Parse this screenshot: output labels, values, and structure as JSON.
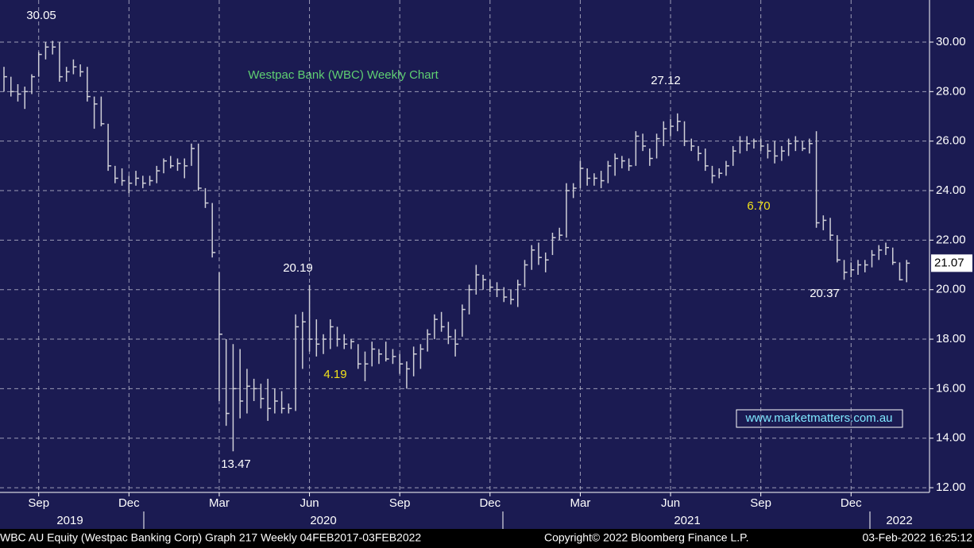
{
  "chart_data": {
    "type": "hlc",
    "title": "Westpac Bank (WBC) Weekly Chart",
    "watermark": "www.marketmatters.com.au",
    "footer": [
      "WBC AU Equity (Westpac Banking Corp) Graph 217  Weekly 04FEB2017-03FEB2022",
      "Copyright© 2022 Bloomberg Finance L.P.",
      "03-Feb-2022 16:25:12"
    ],
    "annotations": [
      "6.70",
      "4.19"
    ],
    "years": [
      "2019",
      "2020",
      "2021",
      "2022"
    ],
    "categories": [
      null,
      null,
      null,
      null,
      null,
      "Sep",
      null,
      null,
      null,
      null,
      null,
      null,
      null,
      null,
      null,
      null,
      null,
      null,
      "Dec",
      null,
      null,
      null,
      null,
      null,
      null,
      null,
      null,
      null,
      null,
      null,
      null,
      "Mar",
      null,
      null,
      null,
      null,
      null,
      null,
      null,
      null,
      null,
      null,
      null,
      null,
      "Jun",
      null,
      null,
      null,
      null,
      null,
      null,
      null,
      null,
      null,
      null,
      null,
      null,
      "Sep",
      null,
      null,
      null,
      null,
      null,
      null,
      null,
      null,
      null,
      null,
      null,
      null,
      "Dec",
      null,
      null,
      null,
      null,
      null,
      null,
      null,
      null,
      null,
      null,
      null,
      null,
      "Mar",
      null,
      null,
      null,
      null,
      null,
      null,
      null,
      null,
      null,
      null,
      null,
      null,
      "Jun",
      null,
      null,
      null,
      null,
      null,
      null,
      null,
      null,
      null,
      null,
      null,
      null,
      "Sep",
      null,
      null,
      null,
      null,
      null,
      null,
      null,
      null,
      null,
      null,
      null,
      null,
      "Dec",
      null,
      null,
      null,
      null,
      null,
      null,
      null,
      null
    ],
    "high": [
      29.0,
      28.6,
      28.3,
      28.2,
      28.7,
      29.6,
      30.0,
      30.05,
      30.0,
      29.0,
      29.3,
      29.1,
      29.0,
      27.8,
      27.8,
      26.7,
      25.0,
      24.9,
      24.6,
      24.8,
      24.6,
      24.6,
      25.0,
      25.3,
      25.4,
      25.3,
      25.3,
      25.9,
      25.9,
      24.1,
      23.5,
      20.7,
      18.0,
      17.8,
      17.6,
      16.8,
      16.4,
      16.2,
      16.4,
      16.0,
      15.9,
      15.4,
      19.0,
      19.1,
      20.19,
      18.8,
      18.2,
      18.8,
      18.5,
      18.2,
      18.0,
      17.8,
      17.5,
      17.9,
      17.6,
      17.9,
      17.6,
      17.4,
      17.1,
      17.7,
      17.8,
      18.4,
      19.0,
      19.1,
      18.7,
      18.4,
      19.4,
      20.2,
      21.0,
      20.6,
      20.4,
      20.3,
      20.1,
      20.0,
      20.4,
      21.2,
      21.8,
      21.9,
      21.5,
      22.3,
      22.5,
      24.3,
      24.3,
      25.2,
      24.9,
      24.7,
      24.8,
      25.2,
      25.5,
      25.4,
      25.3,
      26.4,
      26.3,
      25.7,
      26.3,
      26.8,
      26.9,
      27.12,
      26.8,
      26.1,
      25.8,
      25.7,
      25.0,
      24.9,
      25.2,
      25.8,
      26.2,
      26.2,
      26.1,
      26.1,
      25.9,
      26.0,
      25.8,
      26.1,
      26.2,
      26.0,
      26.1,
      26.4,
      23.0,
      22.9,
      22.2,
      21.2,
      21.1,
      21.2,
      21.2,
      21.6,
      21.8,
      21.9,
      21.7,
      21.1,
      21.2
    ],
    "low": [
      28.0,
      27.8,
      27.6,
      27.3,
      27.9,
      28.6,
      29.3,
      29.5,
      28.4,
      28.4,
      28.7,
      28.6,
      27.6,
      26.5,
      26.6,
      24.8,
      24.3,
      24.2,
      23.9,
      24.2,
      24.1,
      24.2,
      24.3,
      24.7,
      24.9,
      24.8,
      24.5,
      25.0,
      24.0,
      23.3,
      21.3,
      15.5,
      14.5,
      13.47,
      14.8,
      15.0,
      15.5,
      15.2,
      14.7,
      15.0,
      15.0,
      15.0,
      15.1,
      16.8,
      17.5,
      17.3,
      17.4,
      17.6,
      17.7,
      17.6,
      17.6,
      16.8,
      16.3,
      16.9,
      17.0,
      17.1,
      17.0,
      16.6,
      16.0,
      16.5,
      16.8,
      17.5,
      18.0,
      18.3,
      17.8,
      17.3,
      18.1,
      19.0,
      19.8,
      20.0,
      19.9,
      19.7,
      19.5,
      19.4,
      19.3,
      20.1,
      20.8,
      21.0,
      20.7,
      21.4,
      22.0,
      22.1,
      23.7,
      24.1,
      24.2,
      24.2,
      24.1,
      24.3,
      24.6,
      24.9,
      24.8,
      25.0,
      25.6,
      25.0,
      25.3,
      25.8,
      26.2,
      26.4,
      25.8,
      25.6,
      25.2,
      24.8,
      24.3,
      24.5,
      24.6,
      25.0,
      25.5,
      25.6,
      25.7,
      25.6,
      25.3,
      25.1,
      25.2,
      25.4,
      25.6,
      25.6,
      25.5,
      22.5,
      22.4,
      22.0,
      21.1,
      20.4,
      20.5,
      20.6,
      20.7,
      20.9,
      21.2,
      21.4,
      21.0,
      20.37,
      20.3
    ],
    "close": [
      28.6,
      28.0,
      27.9,
      28.0,
      28.6,
      29.5,
      29.8,
      29.8,
      28.6,
      28.8,
      29.0,
      28.8,
      27.8,
      27.5,
      26.7,
      25.0,
      24.5,
      24.4,
      24.3,
      24.5,
      24.3,
      24.4,
      24.8,
      25.2,
      25.0,
      25.1,
      25.0,
      25.7,
      24.1,
      23.5,
      21.5,
      18.2,
      15.0,
      16.0,
      15.5,
      16.1,
      16.0,
      15.6,
      15.2,
      15.5,
      15.2,
      15.2,
      18.5,
      18.7,
      18.0,
      17.8,
      18.0,
      18.5,
      18.0,
      17.8,
      17.9,
      17.0,
      17.0,
      17.6,
      17.4,
      17.2,
      17.3,
      17.0,
      16.8,
      17.4,
      17.6,
      18.2,
      18.8,
      18.5,
      18.1,
      17.8,
      19.2,
      20.0,
      20.6,
      20.4,
      20.1,
      20.0,
      19.7,
      19.6,
      20.2,
      21.0,
      21.6,
      21.3,
      21.2,
      22.1,
      22.2,
      24.0,
      24.1,
      24.9,
      24.5,
      24.5,
      24.4,
      25.0,
      25.3,
      25.2,
      25.0,
      26.2,
      25.8,
      25.3,
      26.1,
      26.5,
      26.6,
      26.8,
      26.0,
      25.8,
      25.5,
      25.0,
      24.6,
      24.7,
      25.0,
      25.6,
      26.0,
      25.9,
      26.0,
      25.8,
      25.6,
      25.4,
      25.6,
      25.9,
      26.0,
      25.7,
      25.9,
      22.7,
      22.8,
      22.2,
      21.2,
      20.7,
      20.8,
      21.0,
      21.0,
      21.4,
      21.6,
      21.7,
      21.1,
      20.4,
      21.07
    ],
    "color": "#d0d0d8",
    "ylim": [
      11.81,
      31.7
    ],
    "yticks": [
      {
        "value": 12,
        "label": "12.00"
      },
      {
        "value": 14,
        "label": "14.00"
      },
      {
        "value": 16,
        "label": "16.00"
      },
      {
        "value": 18,
        "label": "18.00"
      },
      {
        "value": 20,
        "label": "20.00"
      },
      {
        "value": 22,
        "label": "22.00"
      },
      {
        "value": 24,
        "label": "24.00"
      },
      {
        "value": 26,
        "label": "26.00"
      },
      {
        "value": 28,
        "label": "28.00"
      },
      {
        "value": 30,
        "label": "30.00"
      }
    ],
    "grid": true
  }
}
